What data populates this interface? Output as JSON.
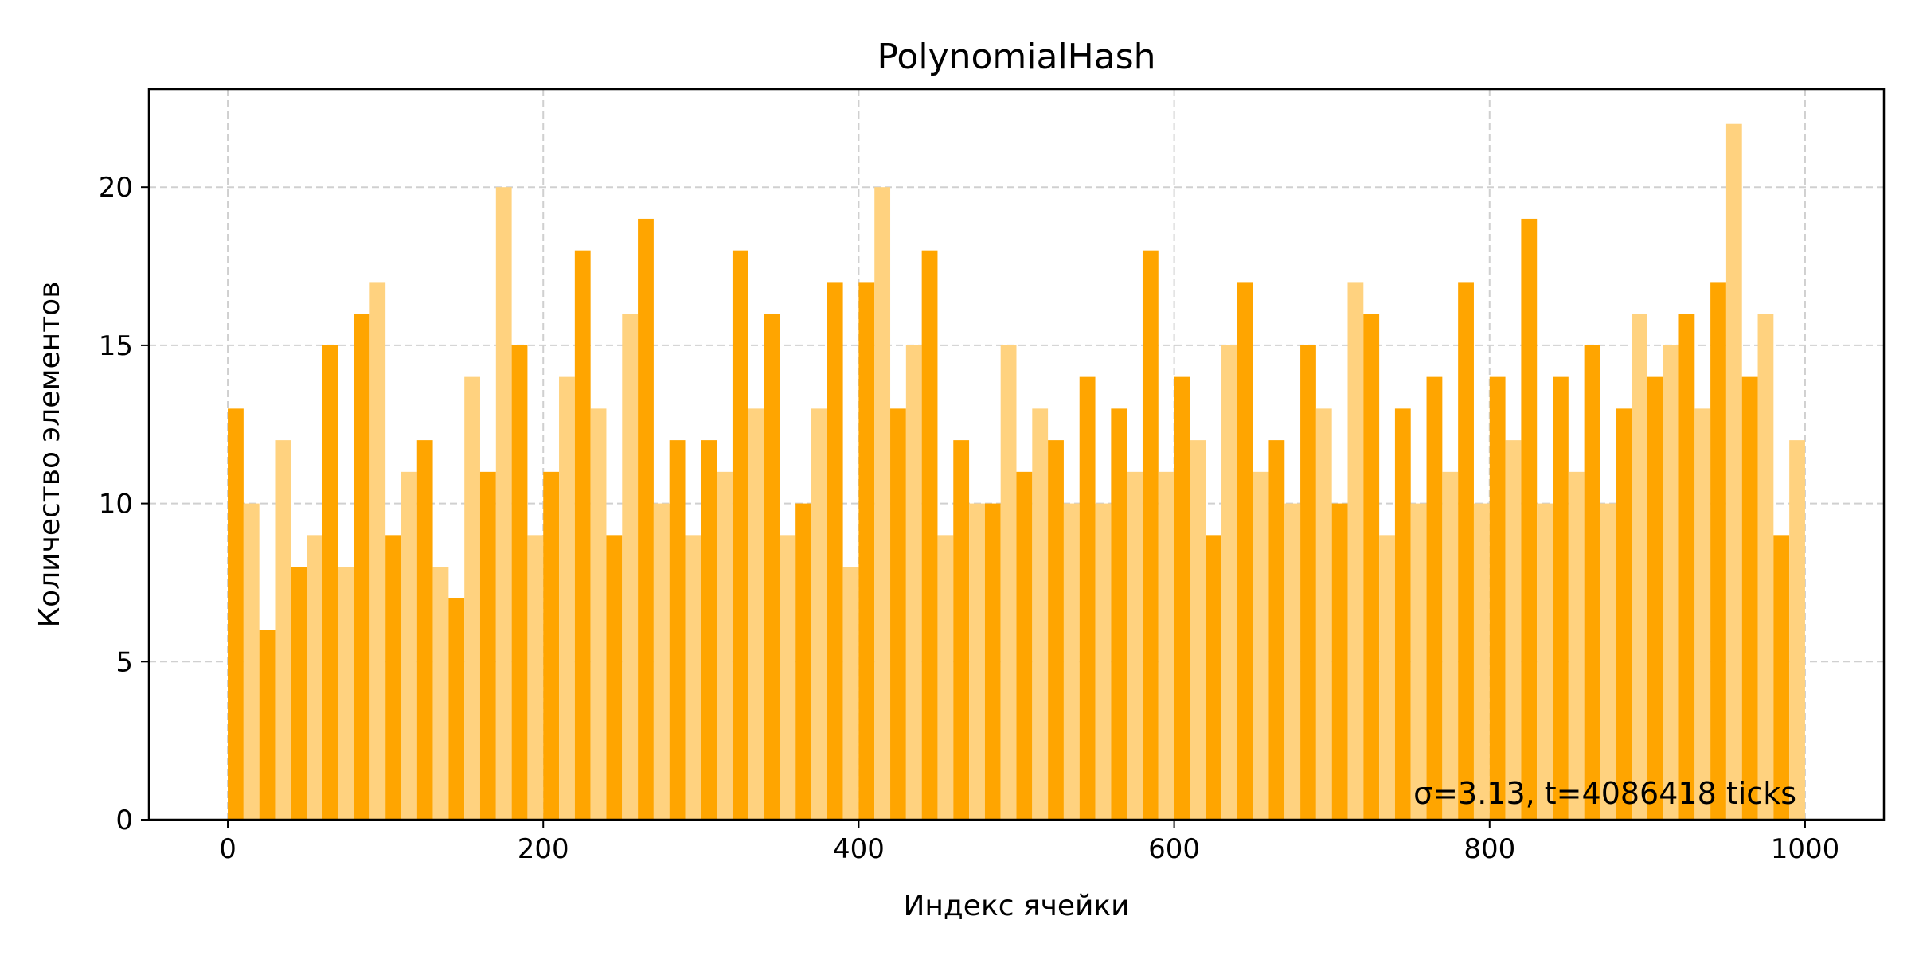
{
  "chart_data": {
    "type": "bar",
    "title": "PolynomialHash",
    "xlabel": "Индекс ячейки",
    "ylabel": "Количество элементов",
    "xlim": [
      -50,
      1050
    ],
    "ylim": [
      0,
      23.1
    ],
    "xticks": [
      0,
      200,
      400,
      600,
      800,
      1000
    ],
    "yticks": [
      0,
      5,
      10,
      15,
      20
    ],
    "grid": true,
    "legend": "none",
    "bar_colors": [
      "#ffa500",
      "#ffd27f"
    ],
    "annotation": "σ=3.13, t=4086418 ticks",
    "categories": [
      0,
      10,
      20,
      30,
      40,
      50,
      60,
      70,
      80,
      90,
      100,
      110,
      120,
      130,
      140,
      150,
      160,
      170,
      180,
      190,
      200,
      210,
      220,
      230,
      240,
      250,
      260,
      270,
      280,
      290,
      300,
      310,
      320,
      330,
      340,
      350,
      360,
      370,
      380,
      390,
      400,
      410,
      420,
      430,
      440,
      450,
      460,
      470,
      480,
      490,
      500,
      510,
      520,
      530,
      540,
      550,
      560,
      570,
      580,
      590,
      600,
      610,
      620,
      630,
      640,
      650,
      660,
      670,
      680,
      690,
      700,
      710,
      720,
      730,
      740,
      750,
      760,
      770,
      780,
      790,
      800,
      810,
      820,
      830,
      840,
      850,
      860,
      870,
      880,
      890,
      900,
      910,
      920,
      930,
      940,
      950,
      960,
      970,
      980,
      990
    ],
    "values": [
      13,
      10,
      6,
      12,
      8,
      9,
      15,
      8,
      16,
      17,
      9,
      11,
      12,
      8,
      7,
      14,
      11,
      20,
      15,
      9,
      11,
      14,
      18,
      13,
      9,
      16,
      19,
      10,
      12,
      9,
      12,
      11,
      18,
      13,
      16,
      9,
      10,
      13,
      17,
      8,
      17,
      20,
      13,
      15,
      18,
      9,
      12,
      10,
      10,
      15,
      11,
      13,
      12,
      10,
      14,
      10,
      13,
      11,
      18,
      11,
      14,
      12,
      9,
      15,
      17,
      11,
      12,
      10,
      15,
      13,
      10,
      17,
      16,
      9,
      13,
      10,
      14,
      11,
      17,
      10,
      14,
      12,
      19,
      10,
      14,
      11,
      15,
      10,
      13,
      16,
      14,
      15,
      16,
      13,
      17,
      22,
      14,
      16,
      9,
      12
    ]
  }
}
